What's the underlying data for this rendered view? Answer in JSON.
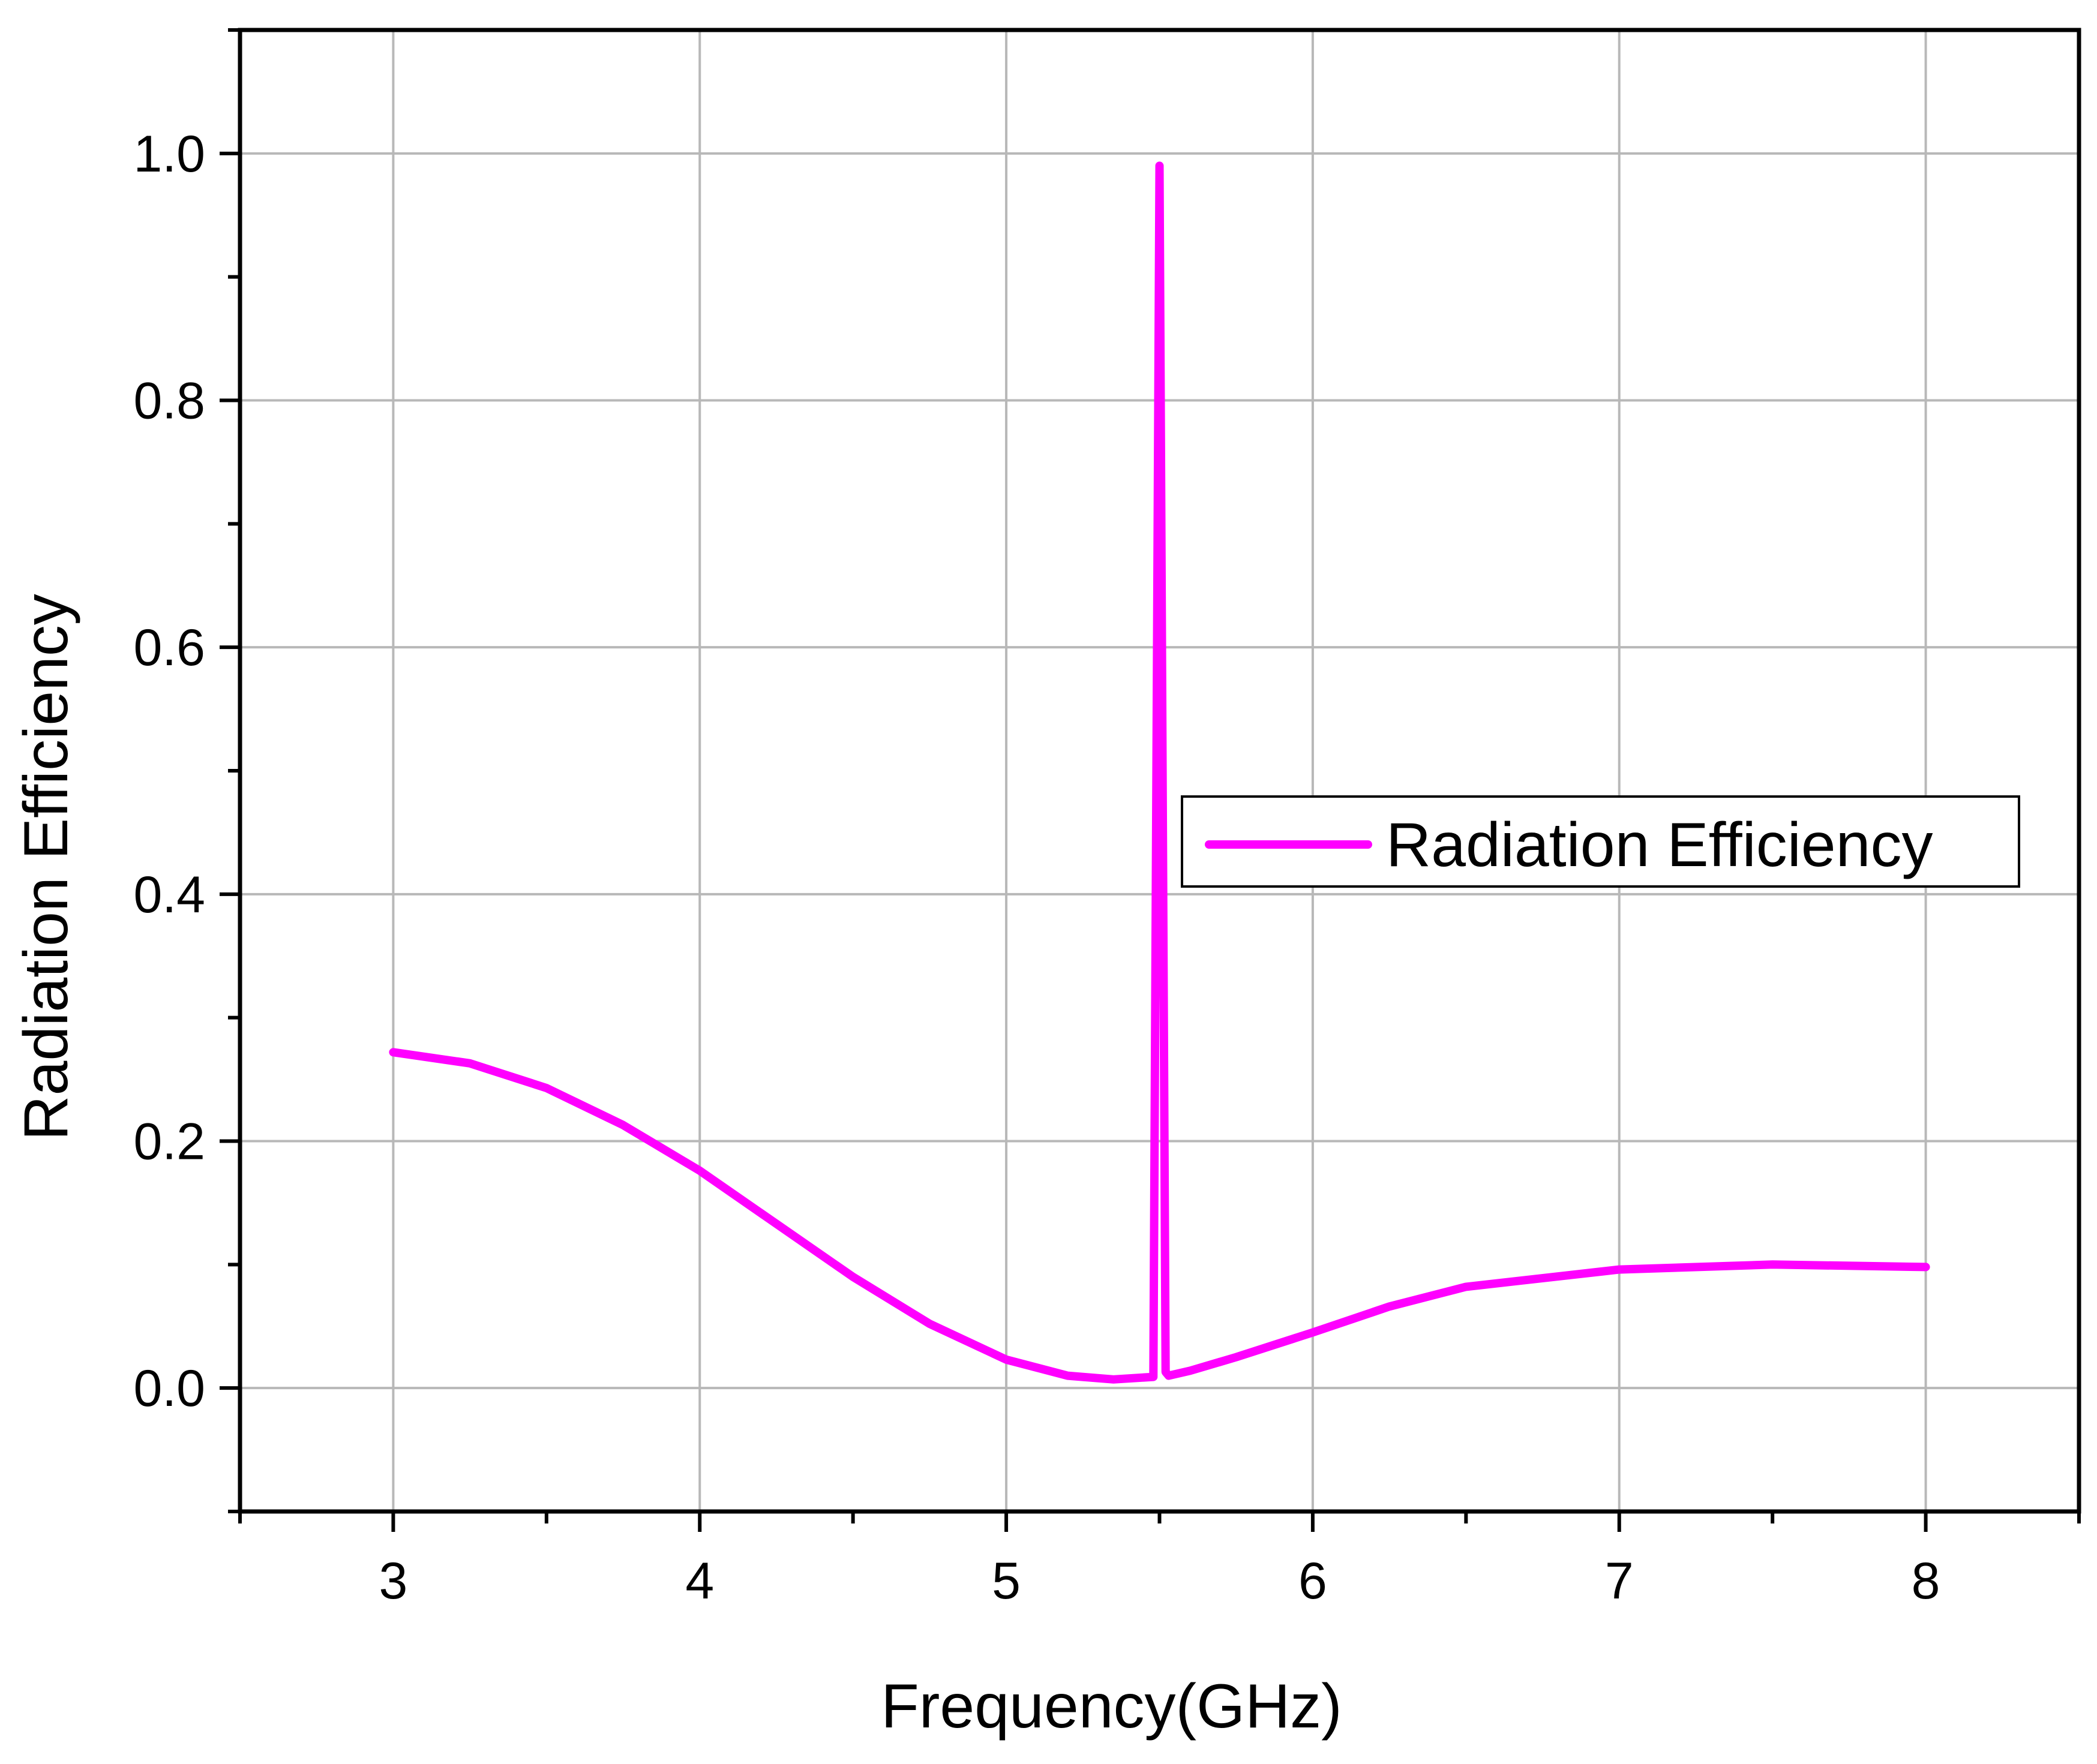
{
  "chart_data": {
    "type": "line",
    "title": "",
    "xlabel": "Frequency(GHz)",
    "ylabel": "Radiation Efficiency",
    "xlim": [
      2.5,
      8.5
    ],
    "ylim": [
      -0.1,
      1.1
    ],
    "xticks": [
      3,
      4,
      5,
      6,
      7,
      8
    ],
    "xtick_labels": [
      "3",
      "4",
      "5",
      "6",
      "7",
      "8"
    ],
    "yticks": [
      0.0,
      0.2,
      0.4,
      0.6,
      0.8,
      1.0
    ],
    "ytick_labels": [
      "0.0",
      "0.2",
      "0.4",
      "0.6",
      "0.8",
      "1.0"
    ],
    "grid": true,
    "legend_position": "center-right",
    "series": [
      {
        "name": "Radiation Efficiency",
        "color": "#ff00ff",
        "x": [
          3.0,
          3.25,
          3.5,
          3.75,
          4.0,
          4.25,
          4.5,
          4.75,
          5.0,
          5.2,
          5.35,
          5.48,
          5.5,
          5.52,
          5.53,
          5.6,
          5.75,
          6.0,
          6.25,
          6.5,
          7.0,
          7.5,
          8.0
        ],
        "y": [
          0.272,
          0.263,
          0.243,
          0.213,
          0.176,
          0.133,
          0.09,
          0.052,
          0.023,
          0.01,
          0.007,
          0.009,
          0.99,
          0.013,
          0.01,
          0.014,
          0.025,
          0.045,
          0.066,
          0.082,
          0.096,
          0.1,
          0.098
        ]
      }
    ]
  }
}
